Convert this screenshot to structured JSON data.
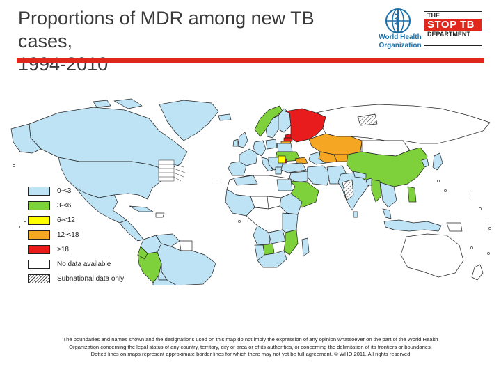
{
  "header": {
    "title_line1": "Proportions of MDR among new TB cases,",
    "title_line2": "1994-2010",
    "who_line1": "World Health",
    "who_line2": "Organization",
    "stoptb_line1": "THE",
    "stoptb_line2": "STOP TB",
    "stoptb_line3": "DEPARTMENT"
  },
  "colors": {
    "accent_bar": "#e1261c",
    "cat_0_3": "#bde3f5",
    "cat_3_6": "#7fd13b",
    "cat_6_12": "#ffff00",
    "cat_12_18": "#f5a623",
    "cat_18": "#e81c1c",
    "no_data": "#ffffff"
  },
  "legend": [
    {
      "label": "0-<3",
      "color": "#bde3f5"
    },
    {
      "label": "3-<6",
      "color": "#7fd13b"
    },
    {
      "label": "6-<12",
      "color": "#ffff00"
    },
    {
      "label": "12-<18",
      "color": "#f5a623"
    },
    {
      "label": ">18",
      "color": "#e81c1c"
    },
    {
      "label": "No data available",
      "color": "#ffffff"
    },
    {
      "label": "Subnational data only",
      "color": "hatch"
    }
  ],
  "disclaimer": {
    "line1": "The boundaries and names shown and the designations used on this map do not imply the expression of any opinion whatsoever on the part of the World Health",
    "line2": "Organization concerning the legal status of any country, territory, city or area or of its authorities, or concerning the delimitation of its frontiers or boundaries.",
    "line3": "Dotted lines on maps represent approximate border lines for which there may not yet be full agreement. © WHO 2011. All rights reserved"
  }
}
